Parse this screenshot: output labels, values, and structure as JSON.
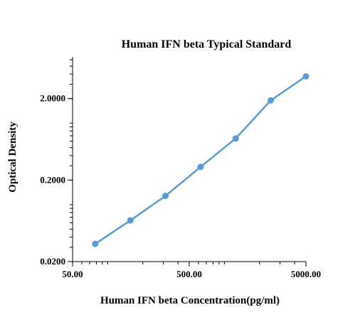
{
  "chart_data": {
    "type": "line",
    "title": "Human IFN beta Typical Standard",
    "xlabel": "Human IFN beta Concentration(pg/ml)",
    "ylabel": "Optical Density",
    "x_scale": "log",
    "y_scale": "log",
    "xlim": [
      50,
      5000
    ],
    "ylim": [
      0.02,
      6.5
    ],
    "x_ticks": [
      {
        "value": 50,
        "label": "50.00"
      },
      {
        "value": 500,
        "label": "500.00"
      },
      {
        "value": 5000,
        "label": "5000.00"
      }
    ],
    "y_ticks": [
      {
        "value": 0.02,
        "label": "0.0200"
      },
      {
        "value": 0.2,
        "label": "0.2000"
      },
      {
        "value": 2,
        "label": "2.0000"
      }
    ],
    "grid": false,
    "legend": "none",
    "series": [
      {
        "color": "#5b9bd5",
        "x": [
          78.13,
          156.25,
          312.5,
          625,
          1250,
          2500,
          5000
        ],
        "y": [
          0.033,
          0.064,
          0.128,
          0.29,
          0.65,
          1.9,
          3.75
        ]
      }
    ]
  }
}
